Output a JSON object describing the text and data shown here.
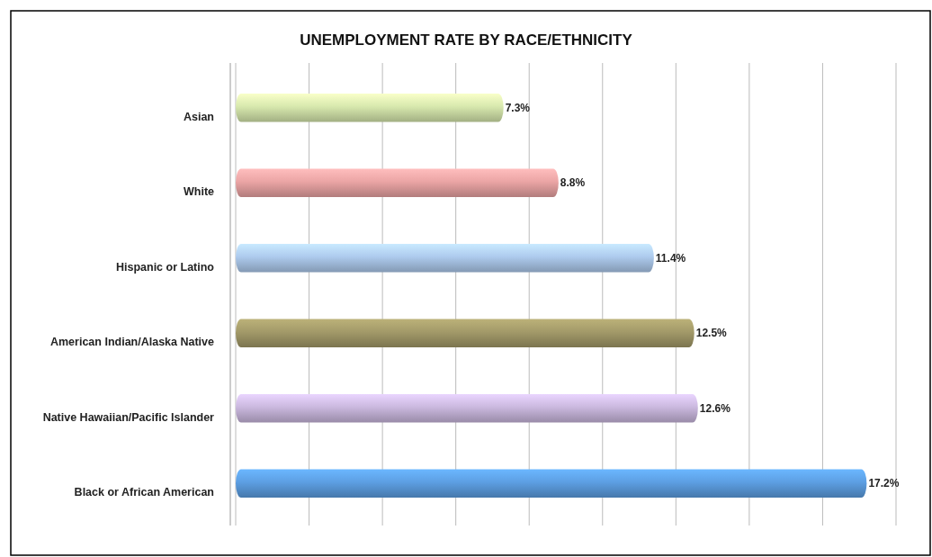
{
  "chart_data": {
    "type": "bar",
    "title": "UNEMPLOYMENT RATE BY RACE/ETHNICITY",
    "orientation": "horizontal",
    "categories": [
      "Asian",
      "White",
      "Hispanic or Latino",
      "American Indian/Alaska Native",
      "Native Hawaiian/Pacific Islander",
      "Black or African American"
    ],
    "values": [
      7.3,
      8.8,
      11.4,
      12.5,
      12.6,
      17.2
    ],
    "colors": [
      "#d8e9ae",
      "#eba5a5",
      "#aecbee",
      "#a39a69",
      "#cbb9df",
      "#5d9fe3"
    ],
    "value_labels": [
      "7.3%",
      "8.8%",
      "11.4%",
      "12.5%",
      "12.6%",
      "17.2%"
    ],
    "xlim": [
      0,
      18
    ],
    "xticks": [
      {
        "value": 0,
        "label": null
      },
      {
        "value": 2,
        "label": null
      },
      {
        "value": 4,
        "label": null
      },
      {
        "value": 6,
        "label": null
      },
      {
        "value": 8,
        "label": null
      },
      {
        "value": 10,
        "label": null
      },
      {
        "value": 12,
        "label": null
      },
      {
        "value": 14,
        "label": null
      },
      {
        "value": 16,
        "label": null
      },
      {
        "value": 18,
        "label": null
      }
    ],
    "grid": "x",
    "tick_labels": "y"
  }
}
